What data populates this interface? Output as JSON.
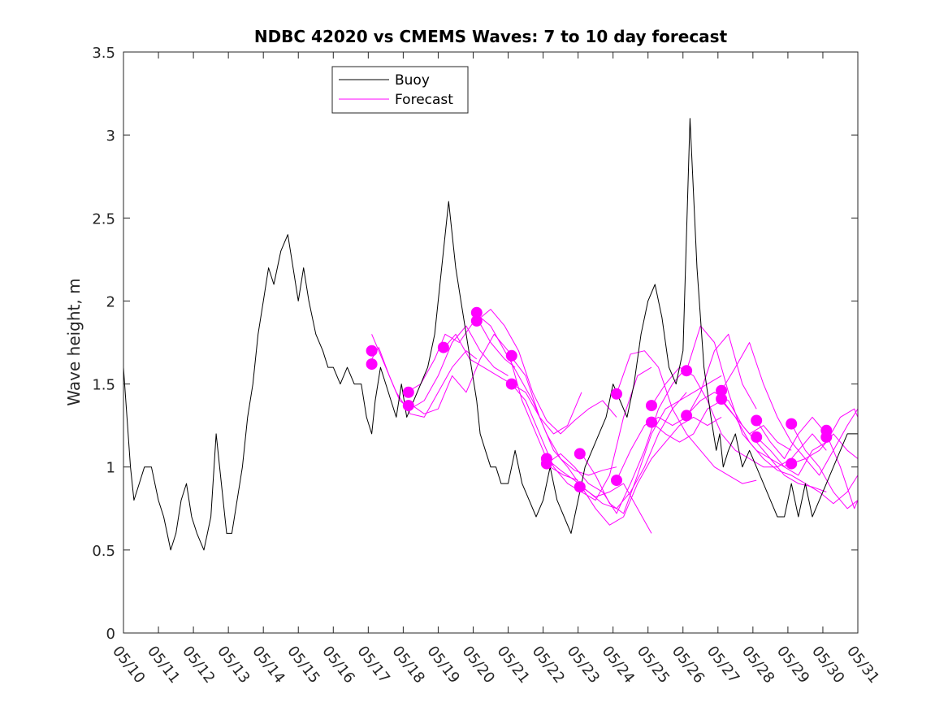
{
  "chart_data": {
    "type": "line",
    "title": "NDBC 42020 vs CMEMS Waves: 7 to 10 day forecast",
    "xlabel": "",
    "ylabel": "Wave height, m",
    "xlim": [
      0,
      21
    ],
    "ylim": [
      0,
      3.5
    ],
    "x_ticks": [
      "05/10",
      "05/11",
      "05/12",
      "05/13",
      "05/14",
      "05/15",
      "05/16",
      "05/17",
      "05/18",
      "05/19",
      "05/20",
      "05/21",
      "05/22",
      "05/23",
      "05/24",
      "05/25",
      "05/26",
      "05/27",
      "05/28",
      "05/29",
      "05/30",
      "05/31"
    ],
    "y_ticks": [
      0,
      0.5,
      1,
      1.5,
      2,
      2.5,
      3,
      3.5
    ],
    "y_tick_labels": [
      "0",
      "0.5",
      "1",
      "1.5",
      "2",
      "2.5",
      "3",
      "3.5"
    ],
    "grid": false,
    "legend": {
      "position": "top-left",
      "entries": [
        "Buoy",
        "Forecast"
      ]
    },
    "colors": {
      "buoy": "#000000",
      "forecast": "#ff00ff"
    },
    "series": [
      {
        "name": "Buoy",
        "x": [
          0,
          0.1,
          0.2,
          0.3,
          0.45,
          0.6,
          0.8,
          1.0,
          1.15,
          1.25,
          1.35,
          1.5,
          1.65,
          1.8,
          1.95,
          2.1,
          2.3,
          2.5,
          2.65,
          2.8,
          2.95,
          3.1,
          3.25,
          3.4,
          3.55,
          3.7,
          3.85,
          4.0,
          4.15,
          4.3,
          4.5,
          4.7,
          4.85,
          5.0,
          5.15,
          5.3,
          5.5,
          5.7,
          5.85,
          6.0,
          6.2,
          6.4,
          6.6,
          6.8,
          6.95,
          7.1,
          7.2,
          7.35,
          7.5,
          7.65,
          7.8,
          7.95,
          8.1,
          8.3,
          8.5,
          8.7,
          8.9,
          9.1,
          9.3,
          9.5,
          9.65,
          9.8,
          9.95,
          10.1,
          10.2,
          10.35,
          10.5,
          10.65,
          10.8,
          11.0,
          11.2,
          11.4,
          11.6,
          11.8,
          12.0,
          12.2,
          12.4,
          12.6,
          12.8,
          13.0,
          13.2,
          13.4,
          13.6,
          13.8,
          14.0,
          14.2,
          14.4,
          14.6,
          14.8,
          15.0,
          15.2,
          15.4,
          15.6,
          15.8,
          16.0,
          16.2,
          16.4,
          16.6,
          16.8,
          16.95,
          17.05,
          17.15,
          17.3,
          17.5,
          17.7,
          17.9,
          18.1,
          18.3,
          18.5,
          18.7,
          18.9,
          19.1,
          19.3,
          19.5,
          19.7,
          19.9,
          20.1,
          20.3,
          20.5,
          20.7,
          20.9,
          21.0
        ],
        "y": [
          1.6,
          1.3,
          1.0,
          0.8,
          0.9,
          1.0,
          1.0,
          0.8,
          0.7,
          0.6,
          0.5,
          0.6,
          0.8,
          0.9,
          0.7,
          0.6,
          0.5,
          0.7,
          1.2,
          0.9,
          0.6,
          0.6,
          0.8,
          1.0,
          1.3,
          1.5,
          1.8,
          2.0,
          2.2,
          2.1,
          2.3,
          2.4,
          2.2,
          2.0,
          2.2,
          2.0,
          1.8,
          1.7,
          1.6,
          1.6,
          1.5,
          1.6,
          1.5,
          1.5,
          1.3,
          1.2,
          1.4,
          1.6,
          1.5,
          1.4,
          1.3,
          1.5,
          1.3,
          1.4,
          1.5,
          1.6,
          1.8,
          2.2,
          2.6,
          2.2,
          2.0,
          1.8,
          1.6,
          1.4,
          1.2,
          1.1,
          1.0,
          1.0,
          0.9,
          0.9,
          1.1,
          0.9,
          0.8,
          0.7,
          0.8,
          1.0,
          0.8,
          0.7,
          0.6,
          0.8,
          1.0,
          1.1,
          1.2,
          1.3,
          1.5,
          1.4,
          1.3,
          1.5,
          1.8,
          2.0,
          2.1,
          1.9,
          1.6,
          1.5,
          1.7,
          3.1,
          2.2,
          1.6,
          1.3,
          1.1,
          1.2,
          1.0,
          1.1,
          1.2,
          1.0,
          1.1,
          1.0,
          0.9,
          0.8,
          0.7,
          0.7,
          0.9,
          0.7,
          0.9,
          0.7,
          0.8,
          0.9,
          1.0,
          1.1,
          1.2,
          1.2,
          1.2
        ]
      },
      {
        "name": "Forecast",
        "x": [
          7.1,
          7.3,
          7.6,
          7.9,
          8.2,
          8.6,
          9.0,
          9.4,
          9.8,
          10.2,
          10.6,
          11.0
        ],
        "y": [
          1.65,
          1.72,
          1.55,
          1.4,
          1.35,
          1.4,
          1.55,
          1.75,
          1.85,
          1.7,
          1.6,
          1.55
        ]
      },
      {
        "x": [
          7.1,
          7.4,
          7.8,
          8.2,
          8.6,
          9.0,
          9.4,
          9.8,
          10.1
        ],
        "y": [
          1.8,
          1.65,
          1.45,
          1.32,
          1.3,
          1.45,
          1.6,
          1.7,
          1.65
        ]
      },
      {
        "x": [
          8.1,
          8.5,
          8.9,
          9.2,
          9.6,
          10.1,
          10.5,
          10.9,
          11.2
        ],
        "y": [
          1.45,
          1.5,
          1.65,
          1.8,
          1.75,
          1.9,
          1.75,
          1.65,
          1.6
        ]
      },
      {
        "x": [
          8.2,
          8.6,
          9.0,
          9.4,
          9.8,
          10.2,
          10.6,
          11.0,
          11.4,
          11.8,
          12.2,
          12.6,
          13.0
        ],
        "y": [
          1.38,
          1.32,
          1.35,
          1.55,
          1.45,
          1.65,
          1.8,
          1.7,
          1.4,
          1.2,
          1.0,
          0.95,
          0.92
        ]
      },
      {
        "x": [
          9.1,
          9.5,
          9.9,
          10.3,
          10.7,
          11.1,
          11.5,
          11.9,
          12.3,
          12.7,
          13.1
        ],
        "y": [
          1.7,
          1.8,
          1.65,
          1.6,
          1.55,
          1.5,
          1.45,
          1.3,
          1.2,
          1.25,
          1.45
        ]
      },
      {
        "x": [
          10.1,
          10.5,
          10.9,
          11.3,
          11.7,
          12.1,
          12.5,
          12.9,
          13.3,
          13.7,
          14.1
        ],
        "y": [
          1.92,
          1.85,
          1.7,
          1.55,
          1.4,
          1.2,
          1.05,
          0.98,
          0.95,
          0.98,
          1.0
        ]
      },
      {
        "x": [
          10.1,
          10.5,
          10.9,
          11.3,
          11.7,
          12.1,
          12.5,
          12.9,
          13.3,
          13.7,
          14.1
        ],
        "y": [
          1.88,
          1.95,
          1.85,
          1.7,
          1.45,
          1.28,
          1.2,
          1.28,
          1.35,
          1.4,
          1.3
        ]
      },
      {
        "x": [
          11.1,
          11.5,
          11.9,
          12.3,
          12.7,
          13.1,
          13.5,
          13.9,
          14.3,
          14.7,
          15.1
        ],
        "y": [
          1.66,
          1.55,
          1.3,
          1.1,
          1.0,
          0.88,
          0.82,
          0.85,
          0.9,
          0.75,
          0.6
        ]
      },
      {
        "x": [
          11.1,
          11.5,
          11.9,
          12.3,
          12.7,
          13.1,
          13.5,
          13.9,
          14.3,
          14.7,
          15.1
        ],
        "y": [
          1.5,
          1.4,
          1.2,
          1.0,
          0.9,
          0.85,
          0.8,
          0.95,
          1.3,
          1.55,
          1.6
        ]
      },
      {
        "x": [
          12.1,
          12.5,
          12.9,
          13.3,
          13.7,
          14.1,
          14.5,
          14.9,
          15.3,
          15.7,
          16.1
        ],
        "y": [
          1.05,
          0.98,
          0.92,
          0.85,
          0.78,
          0.75,
          0.85,
          1.0,
          1.2,
          1.35,
          1.45
        ]
      },
      {
        "x": [
          12.1,
          12.5,
          12.9,
          13.3,
          13.7,
          14.1,
          14.5,
          14.9,
          15.3,
          15.7,
          16.1
        ],
        "y": [
          1.02,
          1.08,
          1.0,
          0.9,
          0.85,
          0.72,
          0.9,
          1.1,
          1.35,
          1.5,
          1.6
        ]
      },
      {
        "x": [
          13.1,
          13.5,
          13.9,
          14.3,
          14.7,
          15.1,
          15.5,
          15.9,
          16.3,
          16.7,
          17.1
        ],
        "y": [
          1.08,
          0.95,
          0.78,
          0.72,
          0.95,
          1.2,
          1.35,
          1.4,
          1.45,
          1.5,
          1.55
        ]
      },
      {
        "x": [
          13.1,
          13.5,
          13.9,
          14.3,
          14.7,
          15.1,
          15.5,
          15.9,
          16.3,
          16.7,
          17.1
        ],
        "y": [
          0.88,
          0.75,
          0.65,
          0.7,
          0.9,
          1.05,
          1.15,
          1.25,
          1.3,
          1.25,
          1.3
        ]
      },
      {
        "x": [
          14.1,
          14.5,
          14.9,
          15.3,
          15.7,
          16.1,
          16.5,
          16.9,
          17.3,
          17.7,
          18.1
        ],
        "y": [
          1.44,
          1.68,
          1.7,
          1.6,
          1.35,
          1.2,
          1.1,
          1.0,
          0.95,
          0.9,
          0.92
        ]
      },
      {
        "x": [
          14.1,
          14.5,
          14.9,
          15.3,
          15.7,
          16.1,
          16.5,
          16.9,
          17.3,
          17.7,
          18.1
        ],
        "y": [
          0.92,
          1.1,
          1.25,
          1.3,
          1.25,
          1.3,
          1.45,
          1.7,
          1.8,
          1.5,
          1.35
        ]
      },
      {
        "x": [
          15.1,
          15.5,
          15.9,
          16.3,
          16.7,
          17.1,
          17.5,
          17.9,
          18.3,
          18.7,
          19.1
        ],
        "y": [
          1.37,
          1.5,
          1.6,
          1.55,
          1.4,
          1.2,
          1.1,
          1.05,
          1.0,
          1.0,
          1.05
        ]
      },
      {
        "x": [
          15.1,
          15.5,
          15.9,
          16.3,
          16.7,
          17.1,
          17.5,
          17.9,
          18.3,
          18.7,
          19.1
        ],
        "y": [
          1.27,
          1.2,
          1.15,
          1.2,
          1.35,
          1.4,
          1.3,
          1.2,
          1.25,
          1.15,
          1.1
        ]
      },
      {
        "x": [
          16.1,
          16.5,
          16.9,
          17.3,
          17.7,
          18.1,
          18.5,
          18.9,
          19.3,
          19.7,
          20.1
        ],
        "y": [
          1.58,
          1.85,
          1.75,
          1.45,
          1.2,
          1.1,
          1.05,
          0.95,
          0.9,
          0.88,
          0.85
        ]
      },
      {
        "x": [
          16.1,
          16.5,
          16.9,
          17.3,
          17.7,
          18.1,
          18.5,
          18.9,
          19.3,
          19.7,
          20.1
        ],
        "y": [
          1.31,
          1.4,
          1.45,
          1.4,
          1.25,
          1.15,
          1.05,
          1.0,
          1.1,
          1.2,
          1.1
        ]
      },
      {
        "x": [
          17.1,
          17.5,
          17.9,
          18.3,
          18.7,
          19.1,
          19.5,
          19.9,
          20.3,
          20.7,
          21.0
        ],
        "y": [
          1.46,
          1.6,
          1.75,
          1.5,
          1.3,
          1.15,
          1.05,
          1.1,
          1.2,
          1.1,
          1.05
        ]
      },
      {
        "x": [
          17.1,
          17.5,
          17.9,
          18.3,
          18.7,
          19.1,
          19.5,
          19.9,
          20.3,
          20.7,
          21.0
        ],
        "y": [
          1.41,
          1.3,
          1.15,
          1.05,
          0.98,
          0.95,
          0.9,
          0.85,
          0.78,
          0.85,
          0.95
        ]
      },
      {
        "x": [
          18.1,
          18.5,
          18.9,
          19.3,
          19.7,
          20.1,
          20.5,
          20.9,
          21.0
        ],
        "y": [
          1.28,
          1.15,
          1.05,
          1.2,
          1.3,
          1.2,
          1.0,
          0.75,
          0.8
        ]
      },
      {
        "x": [
          18.1,
          18.5,
          18.9,
          19.3,
          19.7,
          20.1,
          20.5,
          20.9,
          21.0
        ],
        "y": [
          1.18,
          1.1,
          1.0,
          0.95,
          1.1,
          1.15,
          1.3,
          1.35,
          1.3
        ]
      },
      {
        "x": [
          19.1,
          19.5,
          19.9,
          20.3,
          20.7,
          21.0
        ],
        "y": [
          1.26,
          1.1,
          1.0,
          0.85,
          0.75,
          0.8
        ]
      },
      {
        "x": [
          19.1,
          19.5,
          19.9,
          20.3,
          20.7,
          21.0
        ],
        "y": [
          1.02,
          1.05,
          0.95,
          1.1,
          1.25,
          1.35
        ]
      }
    ],
    "markers": {
      "x": [
        7.1,
        7.1,
        8.15,
        8.15,
        9.15,
        10.1,
        10.1,
        11.1,
        11.1,
        12.1,
        12.1,
        13.05,
        13.05,
        14.1,
        14.1,
        15.1,
        15.1,
        16.1,
        16.1,
        17.1,
        17.1,
        18.1,
        18.1,
        19.1,
        19.1,
        20.1,
        20.1
      ],
      "y": [
        1.7,
        1.62,
        1.45,
        1.37,
        1.72,
        1.93,
        1.88,
        1.67,
        1.5,
        1.05,
        1.02,
        1.08,
        0.88,
        1.44,
        0.92,
        1.37,
        1.27,
        1.58,
        1.31,
        1.46,
        1.41,
        1.28,
        1.18,
        1.26,
        1.02,
        1.22,
        1.18
      ]
    }
  }
}
